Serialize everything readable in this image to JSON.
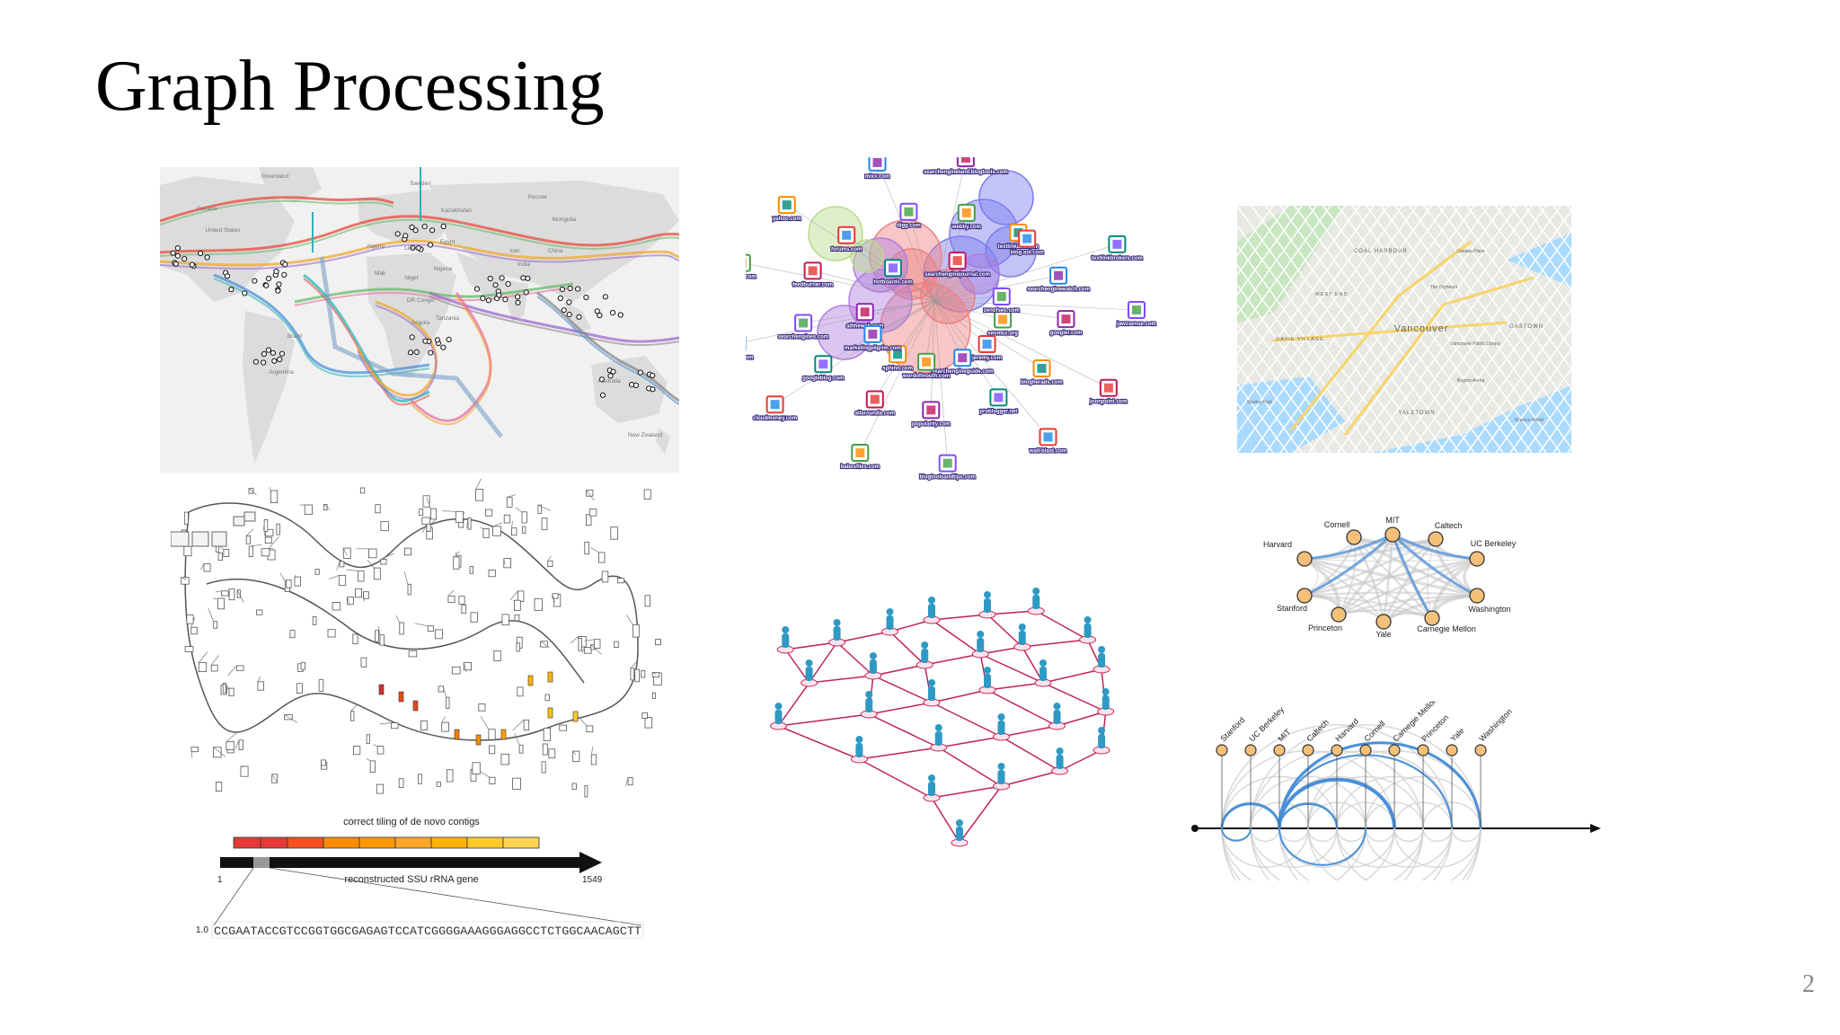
{
  "slide": {
    "title": "Graph Processing",
    "page_number": "2"
  },
  "world_map": {
    "labels": [
      "Canada",
      "United States",
      "Brazil",
      "Argentina",
      "Greenland",
      "Sweden",
      "Kazakhstan",
      "Россия",
      "Mongolia",
      "Algeria",
      "Libya",
      "Egypt",
      "Mali",
      "Niger",
      "Nigeria",
      "DR Congo",
      "Angola",
      "Tanzania",
      "Iran",
      "India",
      "China",
      "Australia",
      "New Zealand"
    ]
  },
  "blog_network": {
    "nodes": [
      "jawzsense.com",
      "wall-blast.com",
      "babesfiles.com",
      "fragsite.com",
      "yahoo.com",
      "searchengineland.blogtools.com",
      "textlinkbrokers.com",
      "joonpoint.com",
      "blogtoolsandtips.com",
      "cloudmoney.com",
      "fatboy.com",
      "mixx.com",
      "textlinkads.com",
      "googler.com",
      "problogger.net",
      "allarounda.com",
      "searchengines.com",
      "forums.com",
      "webby.com",
      "searchenginewatch.com",
      "blogherads.com",
      "popularity.com",
      "googleblog.com",
      "feedburner.com",
      "digg.com",
      "blog.aol.com",
      "seomoz.org",
      "searchengineguide.com",
      "sphinn.com",
      "alltheweb.com",
      "hotboards.com",
      "searchenginejournal.com",
      "zenofseo.com",
      "jeremy.com",
      "wordofmouth.com",
      "marketingpilgrim.com"
    ]
  },
  "city_map": {
    "labels": [
      "COAL HARBOUR",
      "WEST END",
      "Vancouver",
      "DAVIE VILLAGE",
      "YALETOWN",
      "GASTOWN",
      "Canada Place",
      "The Orpheum",
      "Vancouver Public Library",
      "Rogers Arena",
      "Science World",
      "Stanley Park"
    ]
  },
  "contig_figure": {
    "caption": "correct tiling of de novo contigs",
    "gene_label": "reconstructed SSU rRNA gene",
    "start": "1",
    "end": "1549",
    "y_tick": "1.0",
    "sequence": "CCGAATACCGTCCGGTGGCGAGAGTCCATCGGGGAAAGGGAGGCCTCTGGCAACAGCTT"
  },
  "university_network": {
    "nodes": [
      "MIT",
      "Cornell",
      "Caltech",
      "Harvard",
      "UC Berkeley",
      "Stanford",
      "Washington",
      "Princeton",
      "Yale",
      "Carnegie Mellon"
    ]
  },
  "arc_diagram": {
    "nodes": [
      "Stanford",
      "UC Berkeley",
      "MIT",
      "Caltech",
      "Harvard",
      "Cornell",
      "Carnegie Mellon",
      "Princeton",
      "Yale",
      "Washington"
    ]
  },
  "colors": {
    "accent_blue": "#4a90d9",
    "node_orange": "#f5c07a",
    "people_teal": "#2e9ac4",
    "people_link": "#c0245a",
    "blog_red": "#f08080",
    "blog_purple": "#b07fe0",
    "blog_blue": "#7c7cf0",
    "blog_green": "#b7dc8c"
  }
}
